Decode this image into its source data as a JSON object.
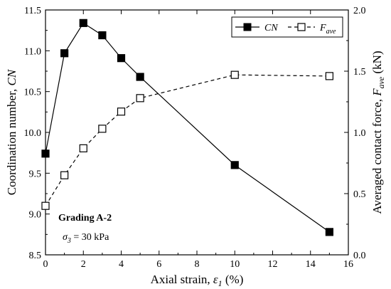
{
  "chart_data": {
    "type": "line",
    "x": [
      0,
      1,
      2,
      3,
      4,
      5,
      10,
      15
    ],
    "xlabel": "Axial strain, ε1 (%)",
    "xlabel_parts": {
      "pre": "Axial strain, ",
      "sym": "ε",
      "sub": "1",
      "post": " (%)"
    },
    "xlim": [
      0,
      16
    ],
    "xticks": [
      0,
      2,
      4,
      6,
      8,
      10,
      12,
      14,
      16
    ],
    "y_left": {
      "label": "Coordination number, CN",
      "label_parts": {
        "pre": "Coordination number, ",
        "italic": "CN"
      },
      "lim": [
        8.5,
        11.5
      ],
      "ticks": [
        8.5,
        9.0,
        9.5,
        10.0,
        10.5,
        11.0,
        11.5
      ],
      "tick_labels": [
        "8.5",
        "9.0",
        "9.5",
        "10.0",
        "10.5",
        "11.0",
        "11.5"
      ]
    },
    "y_right": {
      "label": "Averaged contact force, Fave (kN)",
      "label_parts": {
        "pre": "Averaged contact force, ",
        "sym": "F",
        "sub": "ave",
        "post": " (kN)"
      },
      "lim": [
        0.0,
        2.0
      ],
      "ticks": [
        0.0,
        0.5,
        1.0,
        1.5,
        2.0
      ],
      "tick_labels": [
        "0.0",
        "0.5",
        "1.0",
        "1.5",
        "2.0"
      ]
    },
    "series": [
      {
        "name": "CN",
        "axis": "left",
        "values": [
          9.74,
          10.97,
          11.34,
          11.19,
          10.91,
          10.68,
          9.6,
          8.78
        ],
        "style": "solid",
        "marker": "filled-square"
      },
      {
        "name": "Fave",
        "name_parts": {
          "sym": "F",
          "sub": "ave"
        },
        "axis": "right",
        "values": [
          0.4,
          0.65,
          0.87,
          1.03,
          1.17,
          1.28,
          1.47,
          1.46
        ],
        "style": "dashed",
        "marker": "open-square"
      }
    ],
    "legend_position": "top-right",
    "annotations": {
      "grading": "Grading A-2",
      "sigma": {
        "sym": "σ",
        "sub": "3",
        "rest": " = 30 kPa"
      }
    },
    "grid": false,
    "colors": {
      "line": "#000000",
      "background": "#ffffff"
    }
  }
}
